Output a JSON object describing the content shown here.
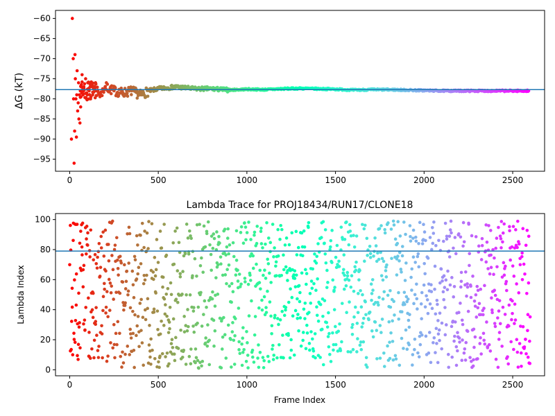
{
  "chart_data": [
    {
      "type": "scatter",
      "title": "",
      "xlabel": "",
      "ylabel": "ΔG (kT)",
      "xlim": [
        -80,
        2680
      ],
      "ylim": [
        -98,
        -58
      ],
      "xticks": [
        0,
        500,
        1000,
        1500,
        2000,
        2500
      ],
      "yticks": [
        -95,
        -90,
        -85,
        -80,
        -75,
        -70,
        -65,
        -60
      ],
      "grid": false,
      "colormap": "rainbow",
      "hline": {
        "y": -77.7,
        "color": "#1f77b4"
      },
      "series": [
        {
          "x": [
            10,
            15,
            20,
            22,
            25,
            28,
            30,
            32,
            35,
            38,
            40,
            42,
            45,
            48,
            50,
            52,
            55,
            58,
            60,
            62,
            65,
            70,
            75,
            80,
            90,
            100,
            110,
            120,
            130,
            140,
            150,
            175,
            200,
            250,
            300,
            350,
            400,
            450,
            500,
            600,
            700,
            800,
            900,
            1000,
            1100,
            1200,
            1300,
            1400,
            1500,
            1600,
            1700,
            1800,
            1900,
            2000,
            2100,
            2200,
            2300,
            2400,
            2500,
            2590
          ],
          "y": [
            -90,
            -60,
            -70,
            -80,
            -96,
            -88,
            -69,
            -75,
            -80,
            -89.5,
            -79,
            -73,
            -83,
            -81,
            -76,
            -85,
            -79,
            -86,
            -78,
            -82,
            -77,
            -74,
            -79,
            -77,
            -75,
            -79,
            -78,
            -76,
            -79,
            -77,
            -78,
            -79,
            -77,
            -78,
            -78.5,
            -78,
            -79,
            -78,
            -77.5,
            -77,
            -77.5,
            -77.5,
            -77.8,
            -77.6,
            -77.7,
            -77.5,
            -77.4,
            -77.5,
            -77.6,
            -77.8,
            -77.7,
            -77.7,
            -77.8,
            -77.9,
            -78,
            -78,
            -78,
            -78,
            -78,
            -78
          ]
        }
      ]
    },
    {
      "type": "scatter",
      "title": "Lambda Trace for PROJ18434/RUN17/CLONE18",
      "xlabel": "Frame Index",
      "ylabel": "Lambda Index",
      "xlim": [
        -80,
        2680
      ],
      "ylim": [
        -4,
        104
      ],
      "xticks": [
        0,
        500,
        1000,
        1500,
        2000,
        2500
      ],
      "yticks": [
        0,
        20,
        40,
        60,
        80,
        100
      ],
      "grid": false,
      "colormap": "rainbow",
      "hline": {
        "y": 79,
        "color": "#1f77b4"
      },
      "series": [
        {
          "x_range": [
            0,
            2600
          ],
          "y_range": [
            1,
            99
          ],
          "count": 1300
        }
      ]
    }
  ]
}
